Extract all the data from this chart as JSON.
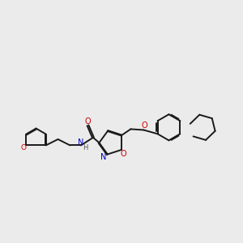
{
  "bg_color": "#ebebeb",
  "bond_color": "#1a1a1a",
  "oxygen_color": "#cc0000",
  "nitrogen_color": "#0000cc",
  "h_color": "#555555",
  "line_width": 1.4,
  "dbo": 0.018,
  "figsize": [
    3.0,
    3.0
  ],
  "dpi": 100,
  "xlim": [
    -0.5,
    5.0
  ],
  "ylim": [
    -1.2,
    1.8
  ]
}
